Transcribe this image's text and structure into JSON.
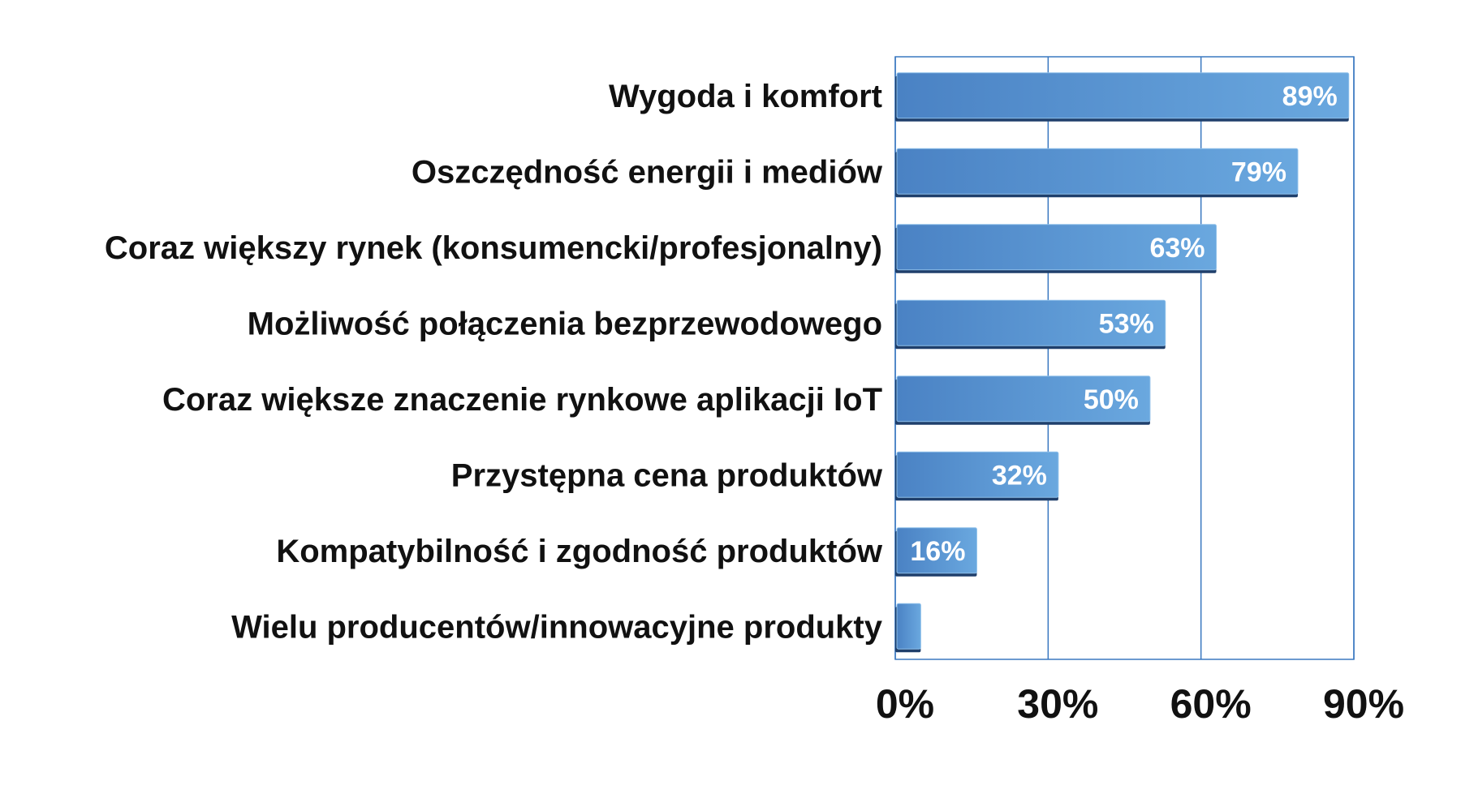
{
  "chart_data": {
    "type": "bar",
    "orientation": "horizontal",
    "categories": [
      "Wygoda i komfort",
      "Oszczędność energii i mediów",
      "Coraz większy rynek (konsumencki/profesjonalny)",
      "Możliwość połączenia bezprzewodowego",
      "Coraz większe znaczenie rynkowe aplikacji IoT",
      "Przystępna cena produktów",
      "Kompatybilność i zgodność produktów",
      "Wielu producentów/innowacyjne produkty"
    ],
    "values": [
      89,
      79,
      63,
      53,
      50,
      32,
      16,
      5
    ],
    "data_labels": [
      "89%",
      "79%",
      "63%",
      "53%",
      "50%",
      "32%",
      "16%",
      ""
    ],
    "xlim": [
      0,
      90
    ],
    "x_ticks": [
      0,
      30,
      60,
      90
    ],
    "x_tick_labels": [
      "0%",
      "30%",
      "60%",
      "90%"
    ],
    "grid": true,
    "legend": "none",
    "colors": {
      "bar_light": "#6aa8df",
      "bar_dark": "#4a82c4",
      "bar_shadow": "#1f3f6b",
      "grid": "#3a78c0",
      "text": "#111111",
      "label": "#ffffff"
    }
  }
}
